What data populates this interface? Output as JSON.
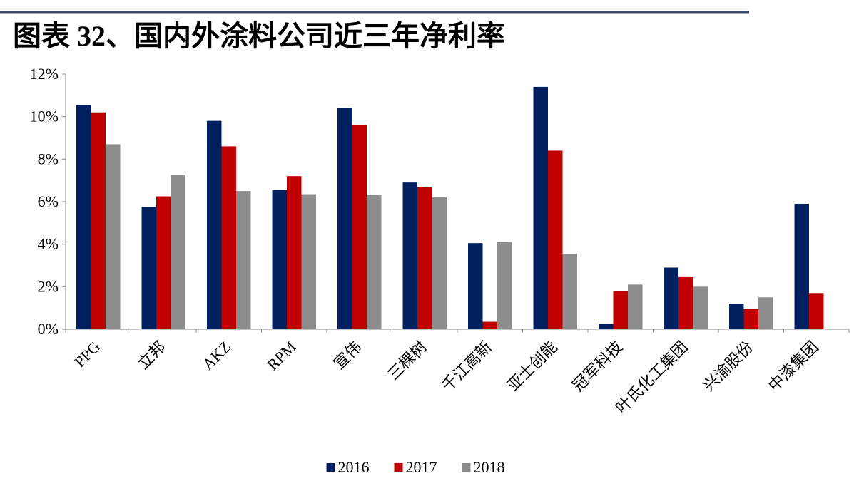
{
  "chart_data": {
    "type": "bar",
    "title": "图表 32、国内外涂料公司近三年净利率",
    "categories": [
      "PPG",
      "立邦",
      "AKZ",
      "RPM",
      "宣伟",
      "三棵树",
      "千江高新",
      "亚士创能",
      "冠军科技",
      "叶氏化工集团",
      "兴渝股份",
      "中漆集团"
    ],
    "series": [
      {
        "name": "2016",
        "color": "#002060",
        "values": [
          10.55,
          5.75,
          9.8,
          6.55,
          10.4,
          6.9,
          4.05,
          11.4,
          0.25,
          2.9,
          1.2,
          5.9
        ]
      },
      {
        "name": "2017",
        "color": "#c00000",
        "values": [
          10.2,
          6.25,
          8.6,
          7.2,
          9.6,
          6.7,
          0.35,
          8.4,
          1.8,
          2.45,
          0.95,
          1.7
        ]
      },
      {
        "name": "2018",
        "color": "#8c8c8c",
        "values": [
          8.7,
          7.25,
          6.5,
          6.35,
          6.3,
          6.2,
          4.1,
          3.55,
          2.1,
          2.0,
          1.5,
          null
        ]
      }
    ],
    "ylim": [
      0,
      12
    ],
    "yticks": [
      {
        "value": 0,
        "label": "0%"
      },
      {
        "value": 2,
        "label": "2%"
      },
      {
        "value": 4,
        "label": "4%"
      },
      {
        "value": 6,
        "label": "6%"
      },
      {
        "value": 8,
        "label": "8%"
      },
      {
        "value": 10,
        "label": "10%"
      },
      {
        "value": 12,
        "label": "12%"
      }
    ],
    "grid": false,
    "legend": "bottom"
  }
}
